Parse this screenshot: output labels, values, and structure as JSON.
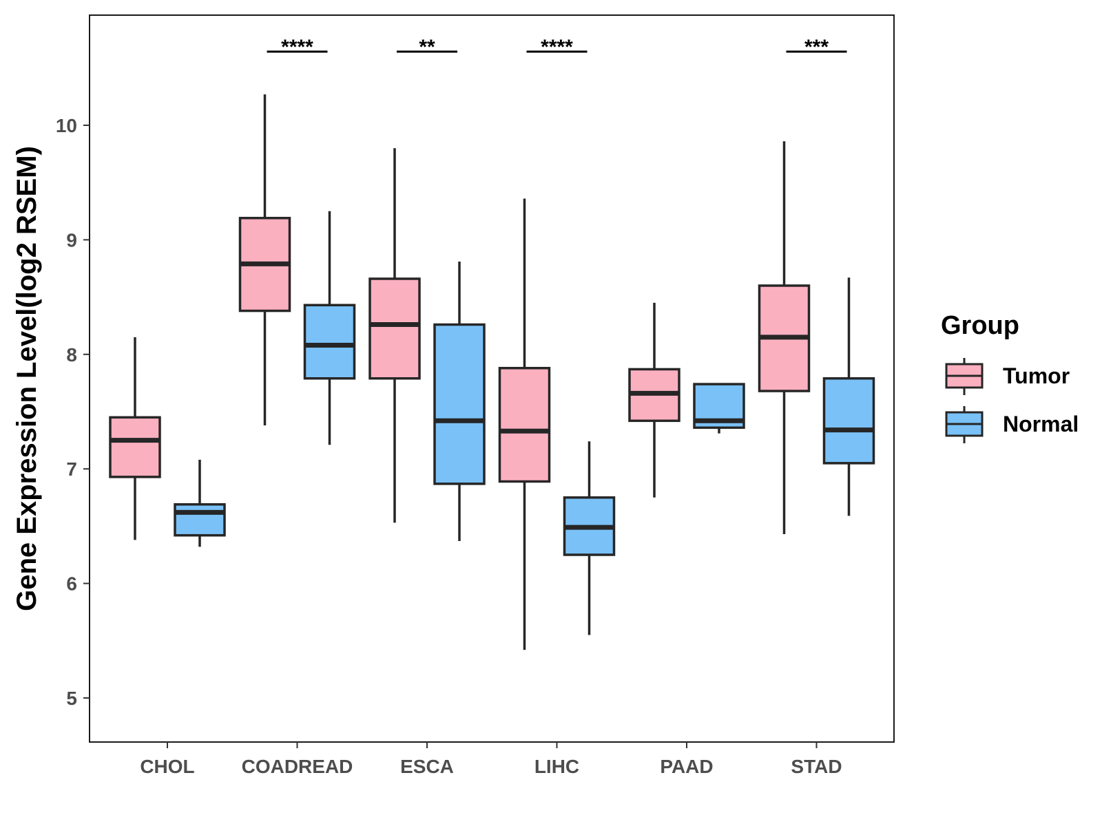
{
  "chart_data": {
    "type": "box",
    "ylabel": "Gene Expression Level(log2 RSEM)",
    "xlabel": "",
    "ylim": [
      4.75,
      11.1
    ],
    "yticks": [
      5,
      6,
      7,
      8,
      9,
      10
    ],
    "grid": false,
    "legend": {
      "title": "Group",
      "position": "right",
      "entries": [
        {
          "name": "Tumor",
          "color": "#FBB0C0"
        },
        {
          "name": "Normal",
          "color": "#7AC1F7"
        }
      ]
    },
    "categories": [
      "CHOL",
      "COADREAD",
      "ESCA",
      "LIHC",
      "PAAD",
      "STAD"
    ],
    "series": [
      {
        "name": "Tumor",
        "color": "#FBB0C0",
        "boxes": [
          {
            "min": 6.38,
            "q1": 6.93,
            "median": 7.25,
            "q3": 7.45,
            "max": 8.15
          },
          {
            "min": 7.38,
            "q1": 8.38,
            "median": 8.79,
            "q3": 9.19,
            "max": 10.27
          },
          {
            "min": 6.53,
            "q1": 7.79,
            "median": 8.26,
            "q3": 8.66,
            "max": 9.8
          },
          {
            "min": 5.42,
            "q1": 6.89,
            "median": 7.33,
            "q3": 7.88,
            "max": 9.36
          },
          {
            "min": 6.75,
            "q1": 7.42,
            "median": 7.66,
            "q3": 7.87,
            "max": 8.45
          },
          {
            "min": 6.43,
            "q1": 7.68,
            "median": 8.15,
            "q3": 8.6,
            "max": 9.86
          }
        ]
      },
      {
        "name": "Normal",
        "color": "#7AC1F7",
        "boxes": [
          {
            "min": 6.32,
            "q1": 6.42,
            "median": 6.62,
            "q3": 6.69,
            "max": 7.08
          },
          {
            "min": 7.21,
            "q1": 7.79,
            "median": 8.08,
            "q3": 8.43,
            "max": 9.25
          },
          {
            "min": 6.37,
            "q1": 6.87,
            "median": 7.42,
            "q3": 8.26,
            "max": 8.81
          },
          {
            "min": 5.55,
            "q1": 6.25,
            "median": 6.49,
            "q3": 6.75,
            "max": 7.24
          },
          {
            "min": 7.31,
            "q1": 7.36,
            "median": 7.42,
            "q3": 7.74,
            "max": 7.74
          },
          {
            "min": 6.59,
            "q1": 7.05,
            "median": 7.34,
            "q3": 7.79,
            "max": 8.67
          }
        ]
      }
    ],
    "significance": [
      "",
      "****",
      "**",
      "****",
      "",
      "***"
    ]
  }
}
